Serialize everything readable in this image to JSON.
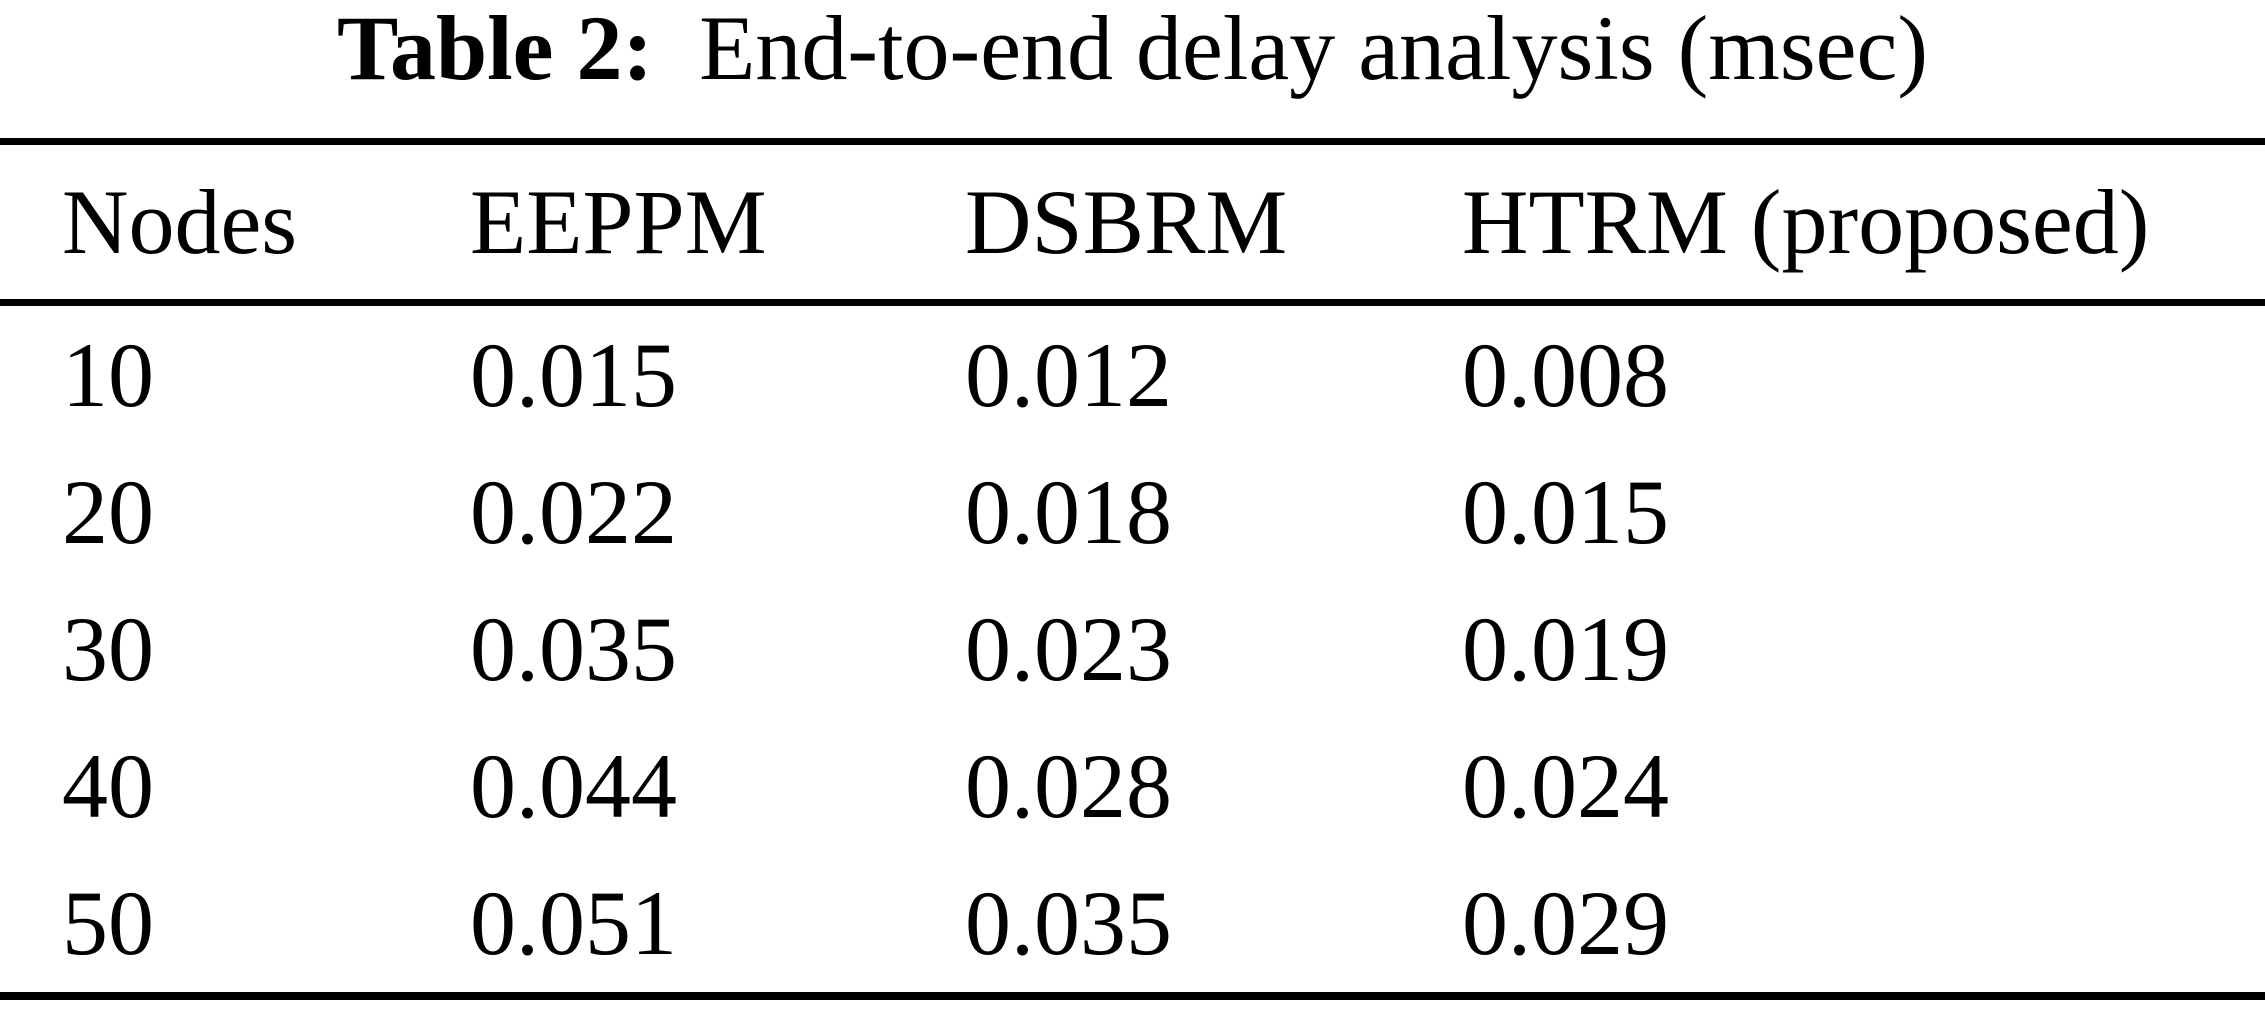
{
  "caption": {
    "label": "Table 2:",
    "title": "End-to-end delay analysis (msec)"
  },
  "table": {
    "headers": [
      "Nodes",
      "EEPPM",
      "DSBRM",
      "HTRM (proposed)"
    ],
    "rows": [
      [
        "10",
        "0.015",
        "0.012",
        "0.008"
      ],
      [
        "20",
        "0.022",
        "0.018",
        "0.015"
      ],
      [
        "30",
        "0.035",
        "0.023",
        "0.019"
      ],
      [
        "40",
        "0.044",
        "0.028",
        "0.024"
      ],
      [
        "50",
        "0.051",
        "0.035",
        "0.029"
      ]
    ]
  },
  "colors": {
    "background": "#ffffff",
    "text": "#000000",
    "rule": "#000000"
  },
  "chart_data": {
    "type": "table",
    "title": "Table 2: End-to-end delay analysis (msec)",
    "units": "msec",
    "columns": [
      "Nodes",
      "EEPPM",
      "DSBRM",
      "HTRM (proposed)"
    ],
    "rows": [
      [
        10,
        0.015,
        0.012,
        0.008
      ],
      [
        20,
        0.022,
        0.018,
        0.015
      ],
      [
        30,
        0.035,
        0.023,
        0.019
      ],
      [
        40,
        0.044,
        0.028,
        0.024
      ],
      [
        50,
        0.051,
        0.035,
        0.029
      ]
    ]
  }
}
